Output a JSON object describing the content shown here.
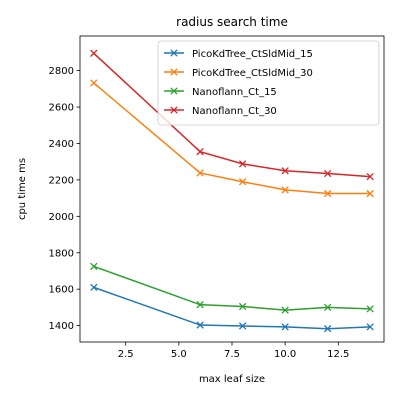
{
  "chart_data": {
    "type": "line",
    "title": "radius search time",
    "xlabel": "max leaf size",
    "ylabel": "cpu time ms",
    "xlim": [
      0.35,
      14.65
    ],
    "ylim": [
      1310,
      2990
    ],
    "xticks": [
      2.5,
      5.0,
      7.5,
      10.0,
      12.5
    ],
    "xtick_labels": [
      "2.5",
      "5.0",
      "7.5",
      "10.0",
      "12.5"
    ],
    "yticks": [
      1400,
      1600,
      1800,
      2000,
      2200,
      2400,
      2600,
      2800
    ],
    "ytick_labels": [
      "1400",
      "1600",
      "1800",
      "2000",
      "2200",
      "2400",
      "2600",
      "2800"
    ],
    "grid": false,
    "legend_position": "top-right",
    "marker": "x",
    "x": [
      1,
      6,
      8,
      10,
      12,
      14
    ],
    "series": [
      {
        "name": "PicoKdTree_CtSldMid_15",
        "color": "#1f77b4",
        "values": [
          1610,
          1403,
          1398,
          1393,
          1383,
          1393
        ]
      },
      {
        "name": "PicoKdTree_CtSldMid_30",
        "color": "#ff7f0e",
        "values": [
          2732,
          2238,
          2190,
          2145,
          2125,
          2125
        ]
      },
      {
        "name": "Nanoflann_Ct_15",
        "color": "#2ca02c",
        "values": [
          1725,
          1515,
          1505,
          1485,
          1500,
          1492
        ]
      },
      {
        "name": "Nanoflann_Ct_30",
        "color": "#d62728",
        "values": [
          2895,
          2355,
          2288,
          2250,
          2235,
          2218
        ]
      }
    ]
  }
}
